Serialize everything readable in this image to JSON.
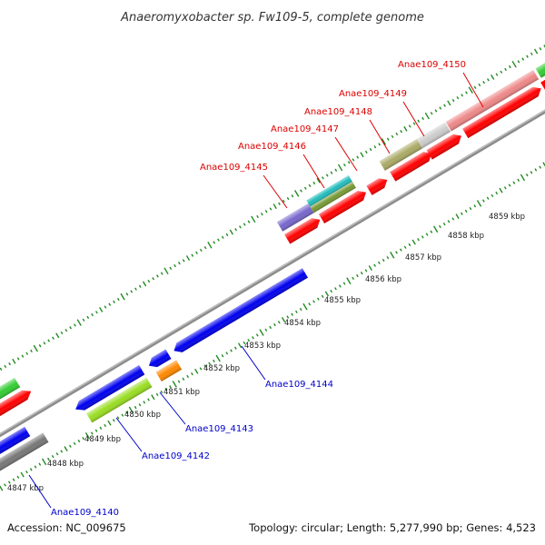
{
  "header": {
    "title": "Anaeromyxobacter sp. Fw109-5, complete genome"
  },
  "footer": {
    "accession": "Accession: NC_009675",
    "summary": "Topology: circular; Length: 5,277,990 bp; Genes: 4,523"
  },
  "colors": {
    "forward_label": "#dd0000",
    "reverse_label": "#0000cc",
    "tick": "#228b22",
    "backbone": "#8c8c8c",
    "forward_strand": "#ff0000",
    "reverse_strand": "#0000ee"
  },
  "axis": {
    "tick_labels": [
      "4847 kbp",
      "4848 kbp",
      "4849 kbp",
      "4850 kbp",
      "4851 kbp",
      "4852 kbp",
      "4853 kbp",
      "4854 kbp",
      "4855 kbp",
      "4856 kbp",
      "4857 kbp",
      "4858 kbp",
      "4859 kbp"
    ]
  },
  "genes": {
    "forward_labels": [
      "Anae109_4145",
      "Anae109_4146",
      "Anae109_4147",
      "Anae109_4148",
      "Anae109_4149",
      "Anae109_4150"
    ],
    "reverse_labels": [
      "Anae109_4140",
      "Anae109_4142",
      "Anae109_4143",
      "Anae109_4144"
    ]
  }
}
